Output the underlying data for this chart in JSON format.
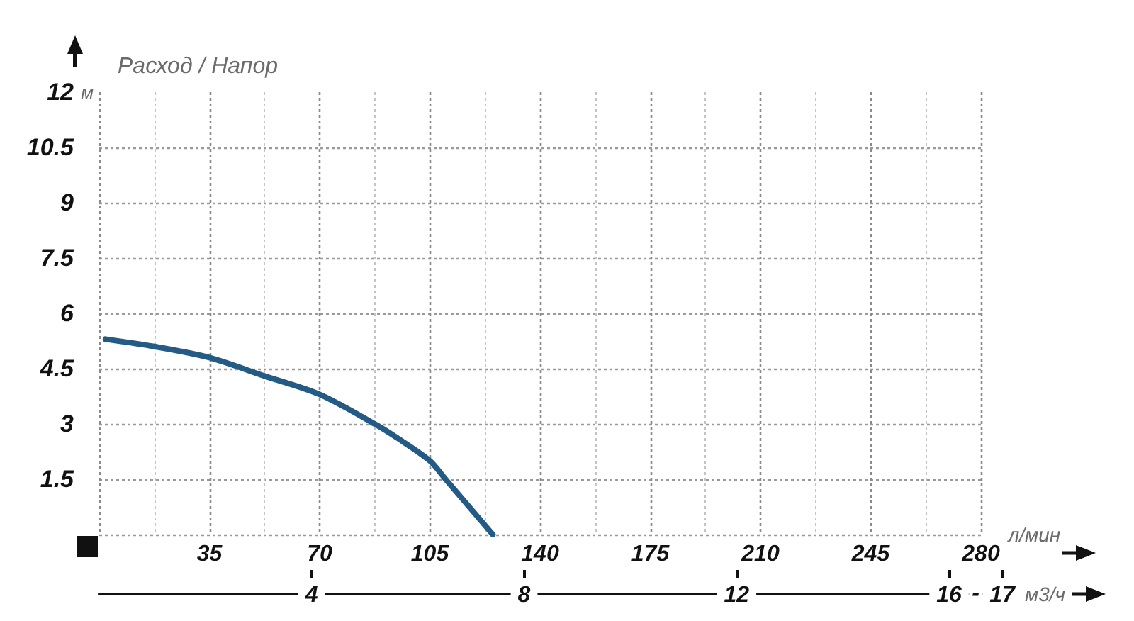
{
  "chart_data": {
    "type": "line",
    "title": "Расход / Напор",
    "xlabel": "л/мин",
    "ylabel": "м",
    "x2label": "м3/ч",
    "x": [
      2,
      17.5,
      35,
      52.5,
      70,
      87.5,
      95,
      105,
      110,
      115,
      120,
      125
    ],
    "values": [
      5.3,
      5.1,
      4.8,
      4.3,
      3.8,
      3.0,
      2.6,
      2.0,
      1.5,
      1.0,
      0.5,
      0
    ],
    "color": "#235b85",
    "xlim": [
      0,
      280
    ],
    "xticks": [
      {
        "value": 0,
        "label": null
      },
      35,
      70,
      105,
      140,
      175,
      210,
      245,
      280
    ],
    "ylim": [
      0,
      12
    ],
    "yticks": [
      {
        "value": 0,
        "label": null
      },
      1.5,
      3,
      4.5,
      6,
      7.5,
      9,
      10.5,
      12
    ],
    "x2lim": [
      0,
      17
    ],
    "x2ticks": [
      4,
      8,
      12,
      16,
      17
    ],
    "annotations": [
      "-"
    ],
    "grid": true,
    "marker": "none",
    "line_style": "solid"
  }
}
